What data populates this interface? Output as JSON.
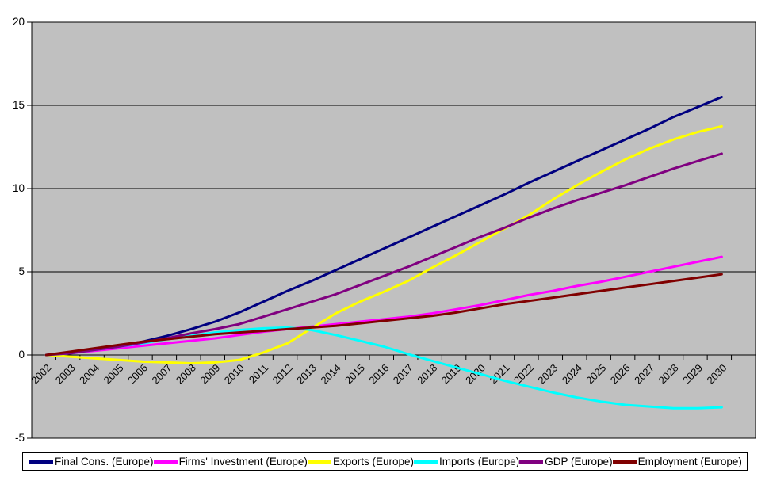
{
  "chart_data": {
    "type": "line",
    "title": "",
    "xlabel": "",
    "ylabel": "",
    "ylim": [
      -5,
      20
    ],
    "y_tick_step": 5,
    "y_tick_labels": [
      "20",
      "15",
      "10",
      "5",
      "0",
      "-5"
    ],
    "grid": "on",
    "legend_position": "bottom",
    "plot_bg_color": "#C0C0C0",
    "grid_color": "#000000",
    "outer_bg_color": "#FFFFFF",
    "categories": [
      2002,
      2003,
      2004,
      2005,
      2006,
      2007,
      2008,
      2009,
      2010,
      2011,
      2012,
      2013,
      2014,
      2015,
      2016,
      2017,
      2018,
      2019,
      2020,
      2021,
      2022,
      2023,
      2024,
      2025,
      2026,
      2027,
      2028,
      2029,
      2030
    ],
    "series": [
      {
        "name": "Final Cons. (Europe)",
        "color": "#000080",
        "values": [
          0,
          0.15,
          0.35,
          0.55,
          0.8,
          1.15,
          1.55,
          2.0,
          2.55,
          3.2,
          3.85,
          4.45,
          5.1,
          5.75,
          6.4,
          7.05,
          7.7,
          8.35,
          9.0,
          9.65,
          10.35,
          11.0,
          11.65,
          12.3,
          12.95,
          13.6,
          14.3,
          14.9,
          15.5
        ]
      },
      {
        "name": "Firms' Investment (Europe)",
        "color": "#FF00FF",
        "values": [
          0,
          0.1,
          0.25,
          0.4,
          0.55,
          0.7,
          0.85,
          1.0,
          1.2,
          1.4,
          1.55,
          1.7,
          1.85,
          2.0,
          2.15,
          2.3,
          2.5,
          2.75,
          3.0,
          3.3,
          3.6,
          3.85,
          4.15,
          4.4,
          4.7,
          5.0,
          5.3,
          5.6,
          5.9
        ]
      },
      {
        "name": "Exports (Europe)",
        "color": "#FFFF00",
        "values": [
          0,
          -0.1,
          -0.2,
          -0.3,
          -0.4,
          -0.45,
          -0.5,
          -0.45,
          -0.3,
          0.15,
          0.7,
          1.6,
          2.5,
          3.2,
          3.8,
          4.45,
          5.25,
          6.0,
          6.8,
          7.6,
          8.4,
          9.35,
          10.2,
          11.0,
          11.75,
          12.4,
          12.95,
          13.4,
          13.75
        ]
      },
      {
        "name": "Imports (Europe)",
        "color": "#00FFFF",
        "values": [
          0,
          0.1,
          0.3,
          0.5,
          0.7,
          0.95,
          1.15,
          1.35,
          1.5,
          1.6,
          1.65,
          1.5,
          1.2,
          0.85,
          0.5,
          0.05,
          -0.35,
          -0.75,
          -1.15,
          -1.55,
          -1.9,
          -2.25,
          -2.55,
          -2.8,
          -3.0,
          -3.1,
          -3.2,
          -3.2,
          -3.15
        ]
      },
      {
        "name": "GDP (Europe)",
        "color": "#800080",
        "values": [
          0,
          0.1,
          0.3,
          0.5,
          0.75,
          1.0,
          1.3,
          1.55,
          1.85,
          2.3,
          2.75,
          3.2,
          3.65,
          4.2,
          4.75,
          5.3,
          5.9,
          6.5,
          7.1,
          7.65,
          8.25,
          8.8,
          9.3,
          9.75,
          10.2,
          10.7,
          11.2,
          11.65,
          12.1
        ]
      },
      {
        "name": "Employment (Europe)",
        "color": "#800000",
        "values": [
          0,
          0.2,
          0.4,
          0.6,
          0.8,
          0.95,
          1.1,
          1.25,
          1.35,
          1.45,
          1.55,
          1.65,
          1.75,
          1.9,
          2.05,
          2.2,
          2.35,
          2.55,
          2.8,
          3.05,
          3.25,
          3.45,
          3.65,
          3.85,
          4.05,
          4.25,
          4.45,
          4.65,
          4.85
        ]
      }
    ]
  },
  "legend": {
    "items": [
      "Final Cons. (Europe)",
      "Firms' Investment (Europe)",
      "Exports (Europe)",
      "Imports (Europe)",
      "GDP (Europe)",
      "Employment (Europe)"
    ]
  }
}
